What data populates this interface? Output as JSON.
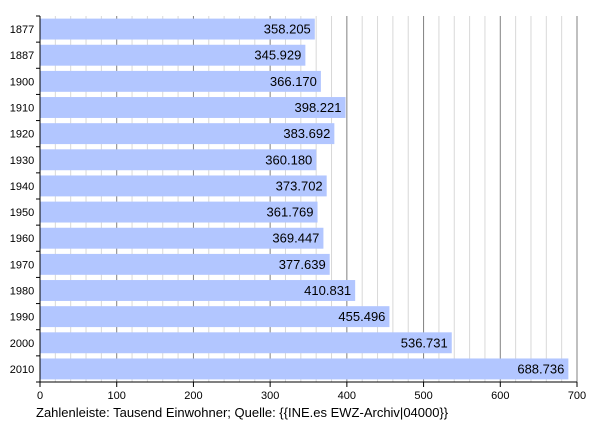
{
  "chart_data": {
    "type": "bar",
    "orientation": "horizontal",
    "categories": [
      "1877",
      "1887",
      "1900",
      "1910",
      "1920",
      "1930",
      "1940",
      "1950",
      "1960",
      "1970",
      "1980",
      "1990",
      "2000",
      "2010"
    ],
    "values": [
      358.205,
      345.929,
      366.17,
      398.221,
      383.692,
      360.18,
      373.702,
      361.769,
      369.447,
      377.639,
      410.831,
      455.496,
      536.731,
      688.736
    ],
    "value_labels": [
      "358.205",
      "345.929",
      "366.170",
      "398.221",
      "383.692",
      "360.180",
      "373.702",
      "361.769",
      "369.447",
      "377.639",
      "410.831",
      "455.496",
      "536.731",
      "688.736"
    ],
    "xlim": [
      0,
      700
    ],
    "xticks": [
      0,
      100,
      200,
      300,
      400,
      500,
      600,
      700
    ],
    "minor_grid_step": 20,
    "grid": true,
    "caption": "Zahlenleiste: Tausend Einwohner; Quelle: {{INE.es EWZ-Archiv|04000}}",
    "colors": {
      "bar": "#b2c6ff",
      "major_grid": "#808080",
      "minor_grid": "#d8d8d8",
      "axis": "#000000"
    }
  }
}
